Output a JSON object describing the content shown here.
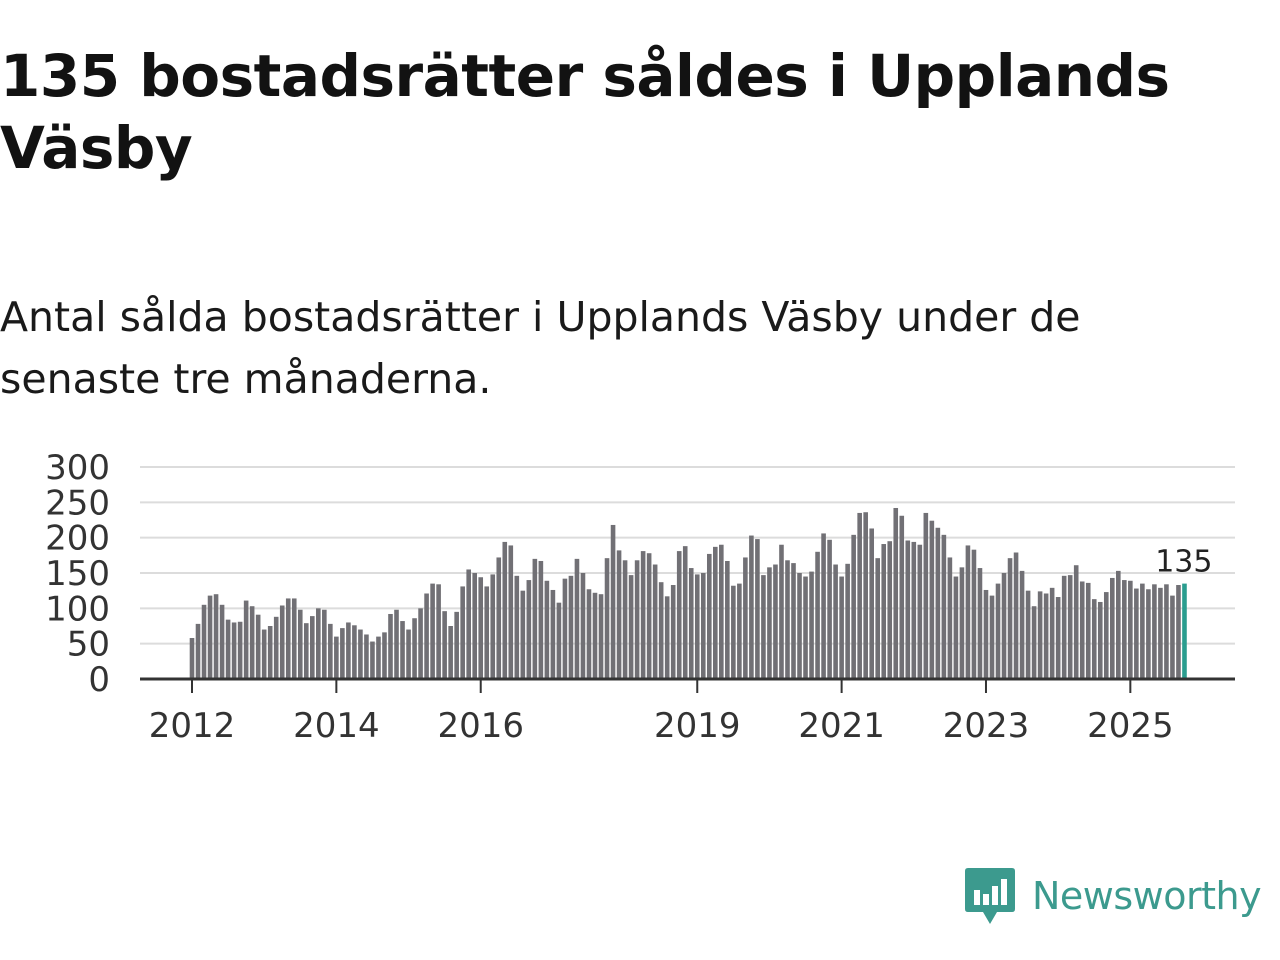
{
  "title": "135 bostadsrätter såldes i Upplands Väsby",
  "subtitle": "Antal sålda bostadsrätter i Upplands Väsby under de senaste tre månaderna.",
  "brand": {
    "name": "Newsworthy",
    "color": "#3c9a8e"
  },
  "chart_data": {
    "type": "bar",
    "title": "",
    "xlabel": "",
    "ylabel": "",
    "ylim": [
      0,
      300
    ],
    "yticks": [
      0,
      50,
      100,
      150,
      200,
      250,
      300
    ],
    "bar_color": "#717075",
    "highlight_color": "#2a9d8f",
    "highlight_label": "135",
    "x_tick_labels": [
      {
        "label": "2012",
        "index": 0
      },
      {
        "label": "2014",
        "index": 24
      },
      {
        "label": "2016",
        "index": 48
      },
      {
        "label": "2019",
        "index": 84
      },
      {
        "label": "2021",
        "index": 108
      },
      {
        "label": "2023",
        "index": 132
      },
      {
        "label": "2025",
        "index": 156
      }
    ],
    "values": [
      58,
      78,
      105,
      118,
      120,
      105,
      84,
      80,
      81,
      111,
      103,
      91,
      70,
      75,
      88,
      104,
      114,
      114,
      98,
      79,
      89,
      100,
      98,
      78,
      60,
      72,
      80,
      76,
      70,
      63,
      53,
      60,
      66,
      92,
      98,
      82,
      70,
      86,
      100,
      121,
      135,
      134,
      96,
      75,
      95,
      131,
      155,
      150,
      144,
      131,
      148,
      172,
      194,
      189,
      146,
      125,
      140,
      170,
      167,
      139,
      126,
      108,
      142,
      146,
      170,
      150,
      127,
      122,
      120,
      171,
      218,
      182,
      168,
      147,
      168,
      181,
      178,
      162,
      137,
      117,
      133,
      181,
      188,
      157,
      148,
      150,
      177,
      187,
      190,
      167,
      132,
      135,
      172,
      203,
      198,
      147,
      158,
      162,
      190,
      168,
      164,
      150,
      145,
      152,
      180,
      206,
      197,
      162,
      145,
      163,
      204,
      235,
      236,
      213,
      171,
      191,
      195,
      242,
      231,
      196,
      194,
      190,
      235,
      224,
      214,
      204,
      172,
      145,
      158,
      189,
      183,
      157,
      126,
      118,
      135,
      150,
      171,
      179,
      153,
      125,
      103,
      124,
      121,
      129,
      116,
      146,
      147,
      161,
      138,
      136,
      113,
      109,
      123,
      143,
      153,
      140,
      139,
      128,
      135,
      127,
      134,
      129,
      134,
      118,
      133,
      135
    ]
  }
}
